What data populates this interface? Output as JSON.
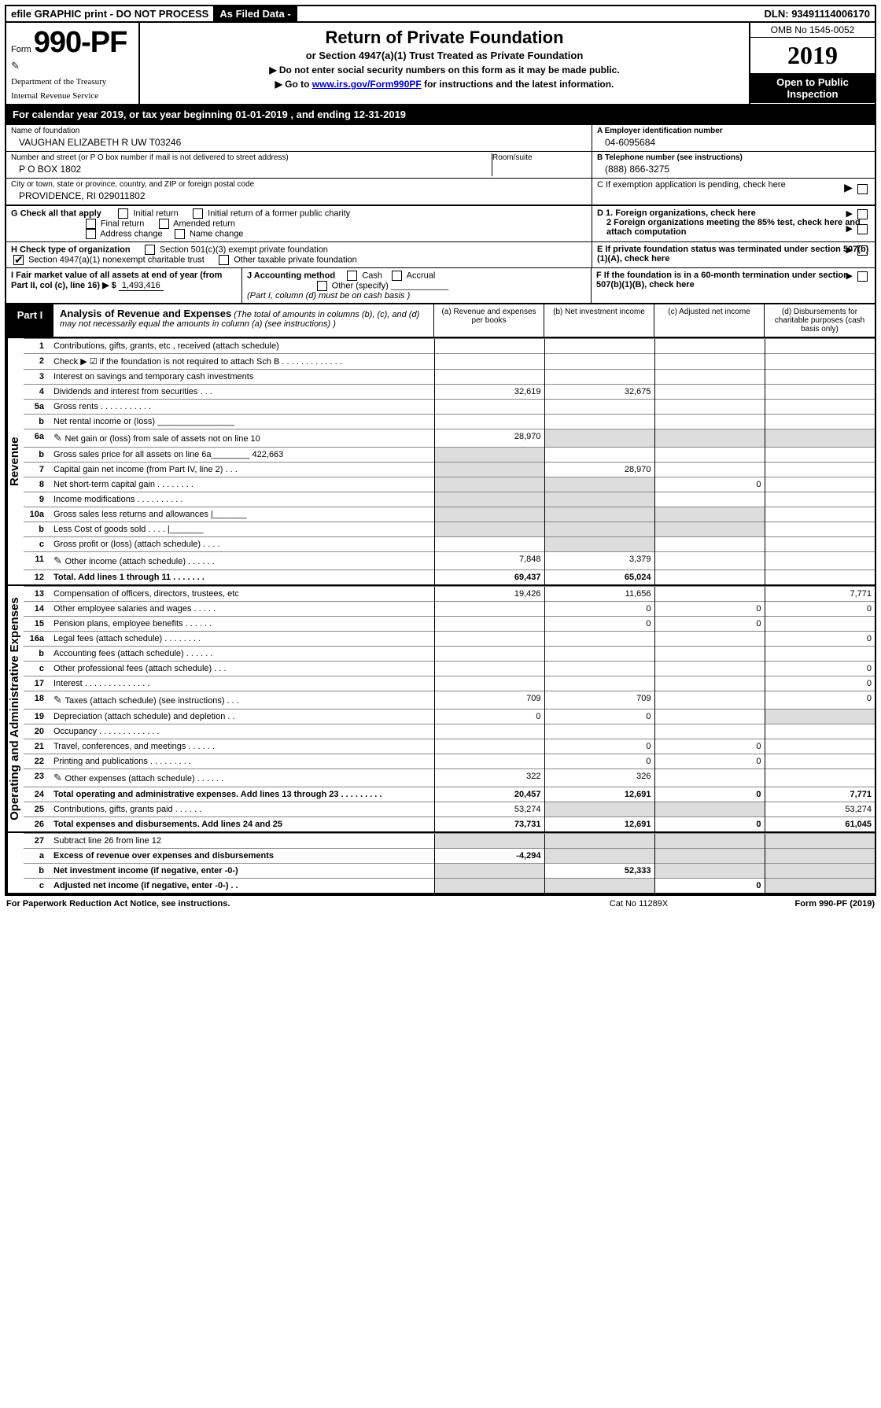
{
  "topbar": {
    "efile": "efile GRAPHIC print - DO NOT PROCESS",
    "asfiled": "As Filed Data -",
    "dln_label": "DLN:",
    "dln": "93491114006170"
  },
  "header": {
    "form_word": "Form",
    "form_no": "990-PF",
    "dept1": "Department of the Treasury",
    "dept2": "Internal Revenue Service",
    "title": "Return of Private Foundation",
    "subtitle": "or Section 4947(a)(1) Trust Treated as Private Foundation",
    "note1": "▶ Do not enter social security numbers on this form as it may be made public.",
    "note2_pre": "▶ Go to ",
    "note2_link": "www.irs.gov/Form990PF",
    "note2_post": " for instructions and the latest information.",
    "omb": "OMB No 1545-0052",
    "year": "2019",
    "inspect": "Open to Public Inspection"
  },
  "calbar": {
    "pre": "For calendar year 2019, or tax year beginning ",
    "begin": "01-01-2019",
    "mid": " , and ending ",
    "end": "12-31-2019"
  },
  "info": {
    "name_lbl": "Name of foundation",
    "name": "VAUGHAN ELIZABETH R UW T03246",
    "addr_lbl": "Number and street (or P O  box number if mail is not delivered to street address)",
    "addr": "P O BOX 1802",
    "room_lbl": "Room/suite",
    "city_lbl": "City or town, state or province, country, and ZIP or foreign postal code",
    "city": "PROVIDENCE, RI  029011802",
    "A_lbl": "A Employer identification number",
    "A_val": "04-6095684",
    "B_lbl": "B Telephone number (see instructions)",
    "B_val": "(888) 866-3275",
    "C_lbl": "C If exemption application is pending, check here"
  },
  "G": {
    "lbl": "G Check all that apply",
    "o1": "Initial return",
    "o2": "Initial return of a former public charity",
    "o3": "Final return",
    "o4": "Amended return",
    "o5": "Address change",
    "o6": "Name change"
  },
  "H": {
    "lbl": "H Check type of organization",
    "o1": "Section 501(c)(3) exempt private foundation",
    "o2": "Section 4947(a)(1) nonexempt charitable trust",
    "o3": "Other taxable private foundation"
  },
  "I": {
    "lbl": "I Fair market value of all assets at end of year (from Part II, col  (c), line 16) ▶ $",
    "val": "1,493,416"
  },
  "J": {
    "lbl": "J Accounting method",
    "cash": "Cash",
    "accrual": "Accrual",
    "other": "Other (specify)",
    "note": "(Part I, column (d) must be on cash basis )"
  },
  "D": {
    "d1": "D 1. Foreign organizations, check here",
    "d2": "2 Foreign organizations meeting the 85% test, check here and attach computation",
    "e": "E  If private foundation status was terminated under section 507(b)(1)(A), check here",
    "f": "F  If the foundation is in a 60-month termination under section 507(b)(1)(B), check here"
  },
  "part1": {
    "tag": "Part I",
    "desc_bold": "Analysis of Revenue and Expenses",
    "desc_rest": " (The total of amounts in columns (b), (c), and (d) may not necessarily equal the amounts in column (a) (see instructions) )",
    "col_a": "(a) Revenue and expenses per books",
    "col_b": "(b) Net investment income",
    "col_c": "(c) Adjusted net income",
    "col_d": "(d) Disbursements for charitable purposes (cash basis only)"
  },
  "side": {
    "rev": "Revenue",
    "exp": "Operating and Administrative Expenses"
  },
  "rows": [
    {
      "n": "1",
      "t": "Contributions, gifts, grants, etc , received (attach schedule)",
      "a": "",
      "b": "",
      "c": "",
      "d": ""
    },
    {
      "n": "2",
      "t": "Check ▶ ☑ if the foundation is not required to attach Sch  B   .  .  .  .  .  .  .  .  .  .  .  .  .",
      "a": "",
      "b": "",
      "c": "",
      "d": ""
    },
    {
      "n": "3",
      "t": "Interest on savings and temporary cash investments",
      "a": "",
      "b": "",
      "c": "",
      "d": ""
    },
    {
      "n": "4",
      "t": "Dividends and interest from securities   .  .  .",
      "a": "32,619",
      "b": "32,675",
      "c": "",
      "d": ""
    },
    {
      "n": "5a",
      "t": "Gross rents   .  .  .  .  .  .  .  .  .  .  .",
      "a": "",
      "b": "",
      "c": "",
      "d": ""
    },
    {
      "n": "b",
      "t": "Net rental income or (loss)  ________________",
      "a": "",
      "b": "",
      "c": "",
      "d": ""
    },
    {
      "n": "6a",
      "t": "Net gain or (loss) from sale of assets not on line 10",
      "a": "28,970",
      "b": "",
      "c": "",
      "d": "",
      "clip": true,
      "gb": true,
      "gc": true,
      "gd": true
    },
    {
      "n": "b",
      "t": "Gross sales price for all assets on line 6a________ 422,663",
      "a": "",
      "b": "",
      "c": "",
      "d": "",
      "ga": true
    },
    {
      "n": "7",
      "t": "Capital gain net income (from Part IV, line 2)   .  .  .",
      "a": "",
      "b": "28,970",
      "c": "",
      "d": "",
      "ga": true
    },
    {
      "n": "8",
      "t": "Net short-term capital gain   .  .  .  .  .  .  .  .",
      "a": "",
      "b": "",
      "c": "0",
      "d": "",
      "ga": true,
      "gb": true
    },
    {
      "n": "9",
      "t": "Income modifications .  .  .  .  .  .  .  .  .  .",
      "a": "",
      "b": "",
      "c": "",
      "d": "",
      "ga": true,
      "gb": true
    },
    {
      "n": "10a",
      "t": "Gross sales less returns and allowances |_______",
      "a": "",
      "b": "",
      "c": "",
      "d": "",
      "ga": true,
      "gb": true,
      "gc": true
    },
    {
      "n": "b",
      "t": "Less  Cost of goods sold   .  .  .  .  |_______",
      "a": "",
      "b": "",
      "c": "",
      "d": "",
      "ga": true,
      "gb": true,
      "gc": true
    },
    {
      "n": "c",
      "t": "Gross profit or (loss) (attach schedule)   .  .  .  .",
      "a": "",
      "b": "",
      "c": "",
      "d": "",
      "gb": true
    },
    {
      "n": "11",
      "t": "Other income (attach schedule)   .  .  .  .  .  .",
      "a": "7,848",
      "b": "3,379",
      "c": "",
      "d": "",
      "clip": true
    },
    {
      "n": "12",
      "t": "Total. Add lines 1 through 11   .  .  .  .  .  .  .",
      "a": "69,437",
      "b": "65,024",
      "c": "",
      "d": "",
      "bold": true
    }
  ],
  "exp_rows": [
    {
      "n": "13",
      "t": "Compensation of officers, directors, trustees, etc",
      "a": "19,426",
      "b": "11,656",
      "c": "",
      "d": "7,771"
    },
    {
      "n": "14",
      "t": "Other employee salaries and wages   .  .  .  .  .",
      "a": "",
      "b": "0",
      "c": "0",
      "d": "0"
    },
    {
      "n": "15",
      "t": "Pension plans, employee benefits   .  .  .  .  .  .",
      "a": "",
      "b": "0",
      "c": "0",
      "d": ""
    },
    {
      "n": "16a",
      "t": "Legal fees (attach schedule) .  .  .  .  .  .  .  .",
      "a": "",
      "b": "",
      "c": "",
      "d": "0"
    },
    {
      "n": "b",
      "t": "Accounting fees (attach schedule)  .  .  .  .  .  .",
      "a": "",
      "b": "",
      "c": "",
      "d": ""
    },
    {
      "n": "c",
      "t": "Other professional fees (attach schedule)   .  .  .",
      "a": "",
      "b": "",
      "c": "",
      "d": "0"
    },
    {
      "n": "17",
      "t": "Interest  .  .  .  .  .  .  .  .  .  .  .  .  .  .",
      "a": "",
      "b": "",
      "c": "",
      "d": "0"
    },
    {
      "n": "18",
      "t": "Taxes (attach schedule) (see instructions)   .  .  .",
      "a": "709",
      "b": "709",
      "c": "",
      "d": "0",
      "clip": true
    },
    {
      "n": "19",
      "t": "Depreciation (attach schedule) and depletion   .  .",
      "a": "0",
      "b": "0",
      "c": "",
      "d": "",
      "gd": true
    },
    {
      "n": "20",
      "t": "Occupancy   .  .  .  .  .  .  .  .  .  .  .  .  .",
      "a": "",
      "b": "",
      "c": "",
      "d": ""
    },
    {
      "n": "21",
      "t": "Travel, conferences, and meetings .  .  .  .  .  .",
      "a": "",
      "b": "0",
      "c": "0",
      "d": ""
    },
    {
      "n": "22",
      "t": "Printing and publications .  .  .  .  .  .  .  .  .",
      "a": "",
      "b": "0",
      "c": "0",
      "d": ""
    },
    {
      "n": "23",
      "t": "Other expenses (attach schedule) .  .  .  .  .  .",
      "a": "322",
      "b": "326",
      "c": "",
      "d": "",
      "clip": true
    },
    {
      "n": "24",
      "t": "Total operating and administrative expenses. Add lines 13 through 23   .  .  .  .  .  .  .  .  .",
      "a": "20,457",
      "b": "12,691",
      "c": "0",
      "d": "7,771",
      "bold": true
    },
    {
      "n": "25",
      "t": "Contributions, gifts, grants paid   .  .  .  .  .  .",
      "a": "53,274",
      "b": "",
      "c": "",
      "d": "53,274",
      "gb": true,
      "gc": true
    },
    {
      "n": "26",
      "t": "Total expenses and disbursements. Add lines 24 and 25",
      "a": "73,731",
      "b": "12,691",
      "c": "0",
      "d": "61,045",
      "bold": true
    }
  ],
  "bottom_rows": [
    {
      "n": "27",
      "t": "Subtract line 26 from line 12",
      "a": "",
      "b": "",
      "c": "",
      "d": "",
      "ga": true,
      "gb": true,
      "gc": true,
      "gd": true
    },
    {
      "n": "a",
      "t": "Excess of revenue over expenses and disbursements",
      "a": "-4,294",
      "b": "",
      "c": "",
      "d": "",
      "bold": true,
      "gb": true,
      "gc": true,
      "gd": true
    },
    {
      "n": "b",
      "t": "Net investment income (if negative, enter -0-)",
      "a": "",
      "b": "52,333",
      "c": "",
      "d": "",
      "bold": true,
      "ga": true,
      "gc": true,
      "gd": true
    },
    {
      "n": "c",
      "t": "Adjusted net income (if negative, enter -0-)  .  .",
      "a": "",
      "b": "",
      "c": "0",
      "d": "",
      "bold": true,
      "ga": true,
      "gb": true,
      "gd": true
    }
  ],
  "footer": {
    "left": "For Paperwork Reduction Act Notice, see instructions.",
    "mid": "Cat  No  11289X",
    "right": "Form 990-PF (2019)"
  }
}
